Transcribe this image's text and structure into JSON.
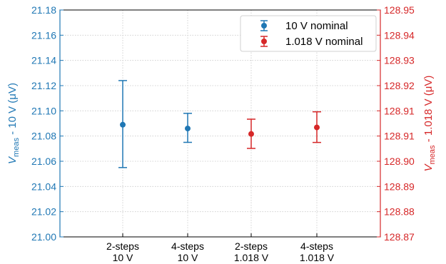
{
  "chart_data": {
    "type": "errorbar",
    "categories": [
      [
        "2-steps",
        "10 V"
      ],
      [
        "4-steps",
        "10 V"
      ],
      [
        "2-steps",
        "1.018 V"
      ],
      [
        "4-steps",
        "1.018 V"
      ]
    ],
    "left_axis": {
      "label_main": "V",
      "label_sub": "meas",
      "label_rest": " - 10 V (μV)",
      "ylim": [
        21.0,
        21.18
      ],
      "ticks": [
        "21.00",
        "21.02",
        "21.04",
        "21.06",
        "21.08",
        "21.10",
        "21.12",
        "21.14",
        "21.16",
        "21.18"
      ],
      "color": "#1f77b4"
    },
    "right_axis": {
      "label_main": "V",
      "label_sub": "meas",
      "label_rest": " - 1.018 V (μV)",
      "ylim": [
        128.87,
        128.95
      ],
      "ticks": [
        "128.87",
        "128.88",
        "128.89",
        "128.90",
        "128.91",
        "128.91",
        "128.92",
        "128.93",
        "128.94",
        "128.95"
      ],
      "color": "#d62728"
    },
    "series": [
      {
        "name": "10 V nominal",
        "color": "#1f77b4",
        "axis": "left",
        "points": [
          {
            "category_index": 0,
            "y": 21.089,
            "yerr_low": 21.055,
            "yerr_high": 21.124
          },
          {
            "category_index": 1,
            "y": 21.086,
            "yerr_low": 21.075,
            "yerr_high": 21.098
          }
        ]
      },
      {
        "name": "1.018 V nominal",
        "color": "#d62728",
        "axis": "right",
        "points": [
          {
            "category_index": 2,
            "y": 128.9063,
            "yerr_low": 128.9012,
            "yerr_high": 128.9115
          },
          {
            "category_index": 3,
            "y": 128.9086,
            "yerr_low": 128.9033,
            "yerr_high": 128.9141
          }
        ]
      }
    ],
    "grid": true,
    "legend_position": "top-right"
  }
}
